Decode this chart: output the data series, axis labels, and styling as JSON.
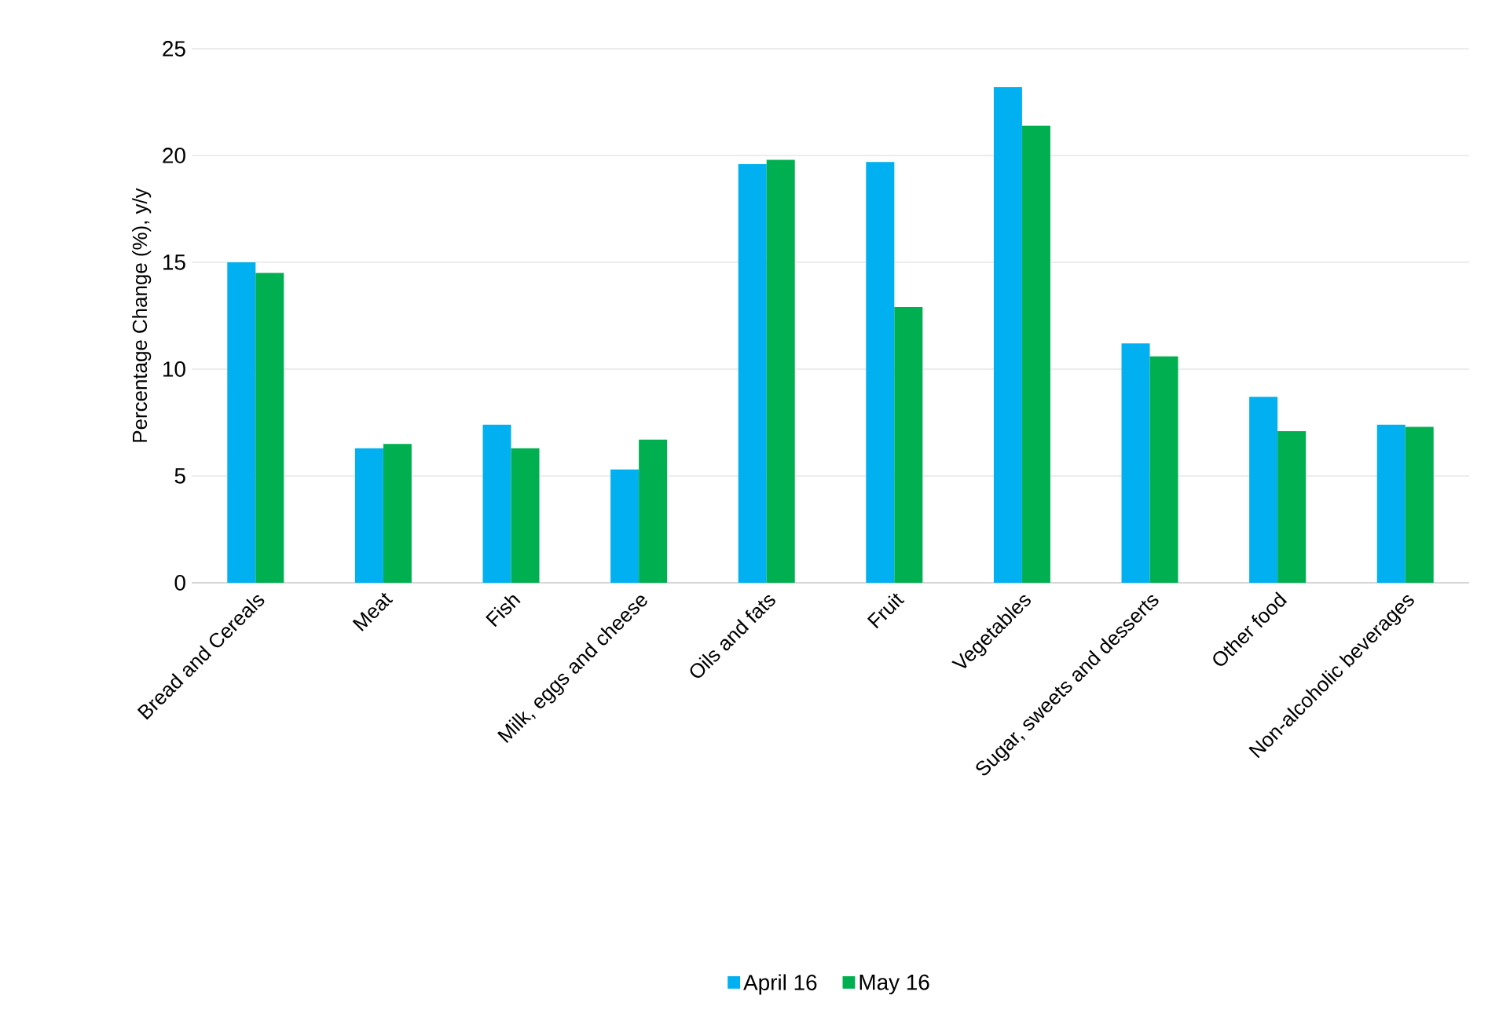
{
  "chart_data": {
    "type": "bar",
    "ylabel": "Percentage Change (%), y/y",
    "categories": [
      "Bread and Cereals",
      "Meat",
      "Fish",
      "Milk, eggs and cheese",
      "Oils and fats",
      "Fruit",
      "Vegetables",
      "Sugar, sweets and desserts",
      "Other food",
      "Non-alcoholic beverages"
    ],
    "series": [
      {
        "name": "April 16",
        "color": "#00b0f0",
        "values": [
          15.0,
          6.3,
          7.4,
          5.3,
          19.6,
          19.7,
          23.2,
          11.2,
          8.7,
          7.4
        ]
      },
      {
        "name": "May 16",
        "color": "#00b050",
        "values": [
          14.5,
          6.5,
          6.3,
          6.7,
          19.8,
          12.9,
          21.4,
          10.6,
          7.1,
          7.3
        ]
      }
    ],
    "ylim": [
      0,
      25
    ],
    "yticks": [
      0,
      5,
      10,
      15,
      20,
      25
    ],
    "grid": "y",
    "legend": "bottom"
  }
}
